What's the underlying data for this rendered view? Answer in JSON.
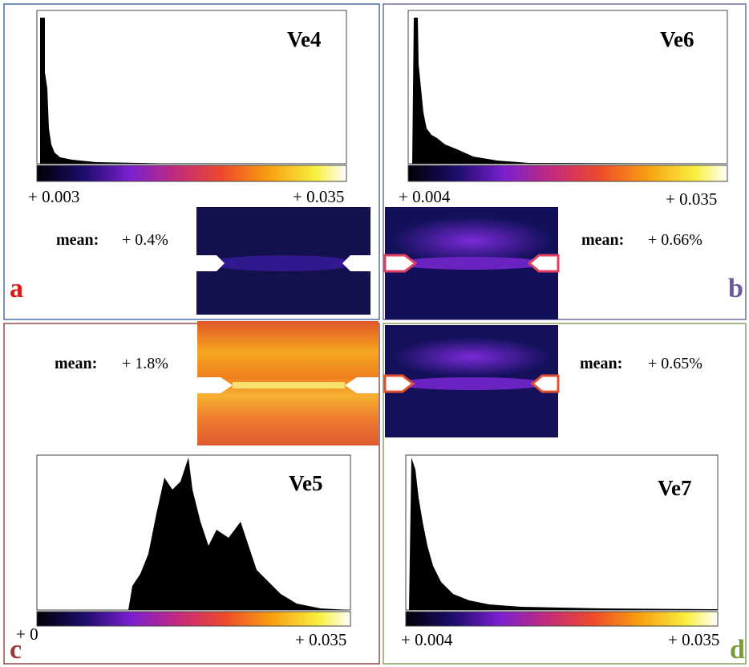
{
  "panels": [
    {
      "letter": "a",
      "title": "Ve4",
      "min_label": "+ 0.003",
      "max_label": "+ 0.035",
      "mean_label": "mean:",
      "mean_value": "+ 0.4%"
    },
    {
      "letter": "b",
      "title": "Ve6",
      "min_label": "+ 0.004",
      "max_label": "+ 0.035",
      "mean_label": "mean:",
      "mean_value": "+ 0.66%"
    },
    {
      "letter": "c",
      "title": "Ve5",
      "min_label": "+ 0",
      "max_label": "+ 0.035",
      "mean_label": "mean:",
      "mean_value": "+ 1.8%"
    },
    {
      "letter": "d",
      "title": "Ve7",
      "min_label": "+ 0.004",
      "max_label": "+ 0.035",
      "mean_label": "mean:",
      "mean_value": "+ 0.65%"
    }
  ]
}
